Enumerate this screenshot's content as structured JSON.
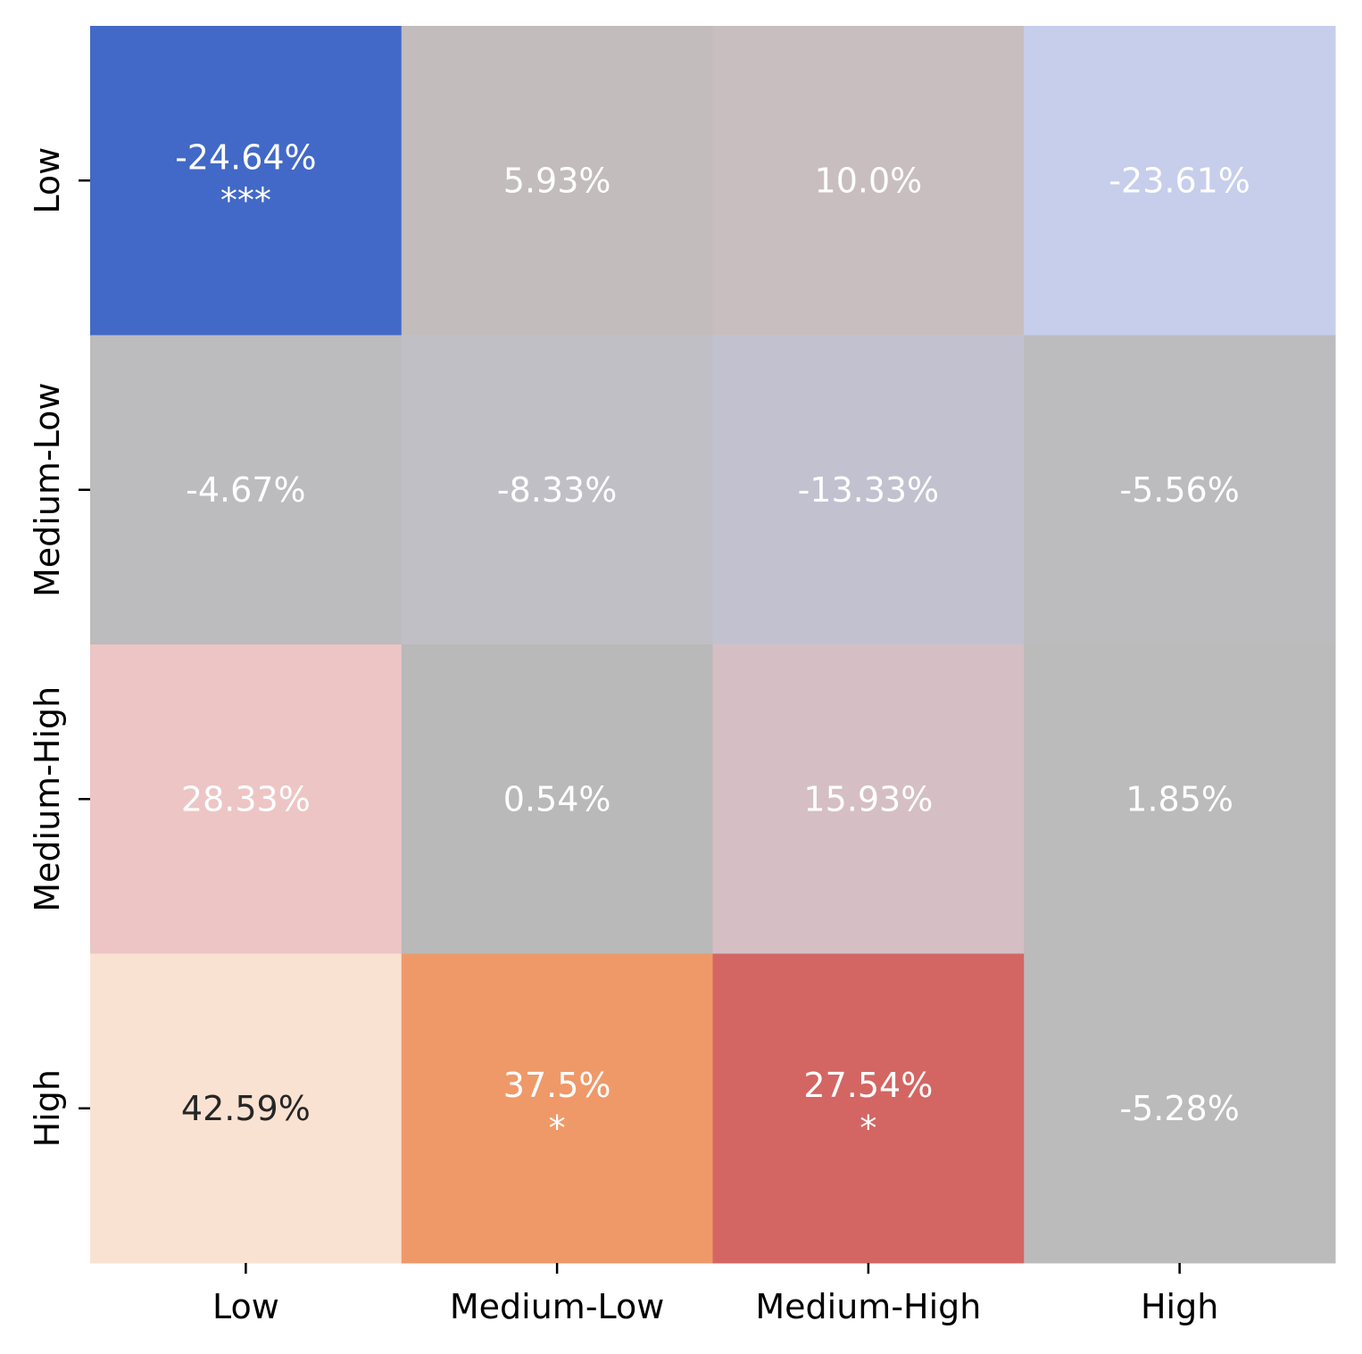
{
  "chart_data": {
    "type": "heatmap",
    "x_categories": [
      "Low",
      "Medium-Low",
      "Medium-High",
      "High"
    ],
    "y_categories": [
      "Low",
      "Medium-Low",
      "Medium-High",
      "High"
    ],
    "values": [
      [
        -24.64,
        5.93,
        10.0,
        -23.61
      ],
      [
        -4.67,
        -8.33,
        -13.33,
        -5.56
      ],
      [
        28.33,
        0.54,
        15.93,
        1.85
      ],
      [
        42.59,
        37.5,
        27.54,
        -5.28
      ]
    ],
    "labels": [
      [
        "-24.64%",
        "5.93%",
        "10.0%",
        "-23.61%"
      ],
      [
        "-4.67%",
        "-8.33%",
        "-13.33%",
        "-5.56%"
      ],
      [
        "28.33%",
        "0.54%",
        "15.93%",
        "1.85%"
      ],
      [
        "42.59%",
        "37.5%",
        "27.54%",
        "-5.28%"
      ]
    ],
    "significance": [
      [
        "***",
        "",
        "",
        ""
      ],
      [
        "",
        "",
        "",
        ""
      ],
      [
        "",
        "",
        "",
        ""
      ],
      [
        "",
        "*",
        "*",
        ""
      ]
    ],
    "cell_colors": [
      [
        "#4269c7",
        "#c2bcbc",
        "#c8bec0",
        "#c6ceeb"
      ],
      [
        "#bcbbbd",
        "#c0bfc6",
        "#c2c1d0",
        "#bcbbbd"
      ],
      [
        "#edc5c5",
        "#b9b9b9",
        "#d5bfc4",
        "#bbbbbb"
      ],
      [
        "#fae2d3",
        "#ef9969",
        "#d36663",
        "#bcbbbc"
      ]
    ],
    "label_colors": [
      [
        "#ffffff",
        "#ffffff",
        "#ffffff",
        "#ffffff"
      ],
      [
        "#ffffff",
        "#ffffff",
        "#ffffff",
        "#ffffff"
      ],
      [
        "#ffffff",
        "#ffffff",
        "#ffffff",
        "#ffffff"
      ],
      [
        "#262626",
        "#ffffff",
        "#ffffff",
        "#ffffff"
      ]
    ],
    "title": "",
    "xlabel": "",
    "ylabel": "",
    "colorbar": false
  }
}
